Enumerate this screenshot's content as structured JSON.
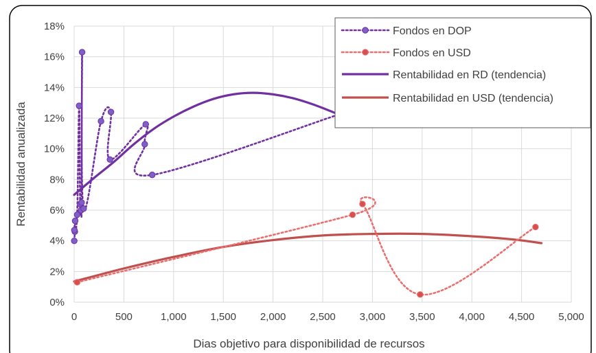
{
  "chart_data": {
    "type": "scatter",
    "title": "",
    "xlabel": "Dias objetivo para disponibilidad de recursos",
    "ylabel": "Rentabilidad anualizada",
    "xlim": [
      0,
      5000
    ],
    "ylim": [
      0,
      18
    ],
    "x_ticks": [
      0,
      500,
      1000,
      1500,
      2000,
      2500,
      3000,
      3500,
      4000,
      4500,
      5000
    ],
    "x_tick_labels": [
      "0",
      "500",
      "1,000",
      "1,500",
      "2,000",
      "2,500",
      "3,000",
      "3,500",
      "4,000",
      "4,500",
      "5,000"
    ],
    "y_ticks": [
      0,
      2,
      4,
      6,
      8,
      10,
      12,
      14,
      16,
      18
    ],
    "y_tick_labels": [
      "0%",
      "2%",
      "4%",
      "6%",
      "8%",
      "10%",
      "12%",
      "14%",
      "16%",
      "18%"
    ],
    "grid": true,
    "legend_position": "top-right",
    "series": [
      {
        "name": "Fondos en DOP",
        "style": "dotted-markers",
        "color": "#7030A0",
        "marker_color": "#7F5FC8",
        "x": [
          1,
          7,
          10,
          2,
          30,
          50,
          60,
          70,
          75,
          80,
          95,
          270,
          370,
          360,
          720,
          710,
          785,
          2690
        ],
        "y": [
          4.0,
          4.6,
          5.3,
          4.7,
          5.7,
          12.8,
          6.4,
          6.0,
          6.5,
          16.3,
          6.1,
          11.8,
          12.4,
          9.3,
          11.6,
          10.3,
          8.3,
          12.3
        ]
      },
      {
        "name": "Fondos en USD",
        "style": "dotted-markers",
        "color": "#EB6E6E",
        "marker_color": "#D6504D",
        "x": [
          30,
          2800,
          2900,
          3480,
          4640
        ],
        "y": [
          1.3,
          5.7,
          6.4,
          0.5,
          4.9
        ]
      },
      {
        "name": "Rentabilidad en RD (tendencia)",
        "style": "solid-line",
        "color": "#7030A0",
        "x": [
          0,
          200,
          400,
          600,
          800,
          1000,
          1200,
          1400,
          1600,
          1800,
          2000,
          2200,
          2400,
          2600,
          2690
        ],
        "y": [
          7.0,
          8.1,
          9.15,
          10.3,
          11.3,
          12.1,
          12.75,
          13.25,
          13.55,
          13.65,
          13.55,
          13.3,
          12.9,
          12.4,
          12.15
        ]
      },
      {
        "name": "Rentabilidad en USD (tendencia)",
        "style": "solid-line",
        "color": "#C0504D",
        "x": [
          0,
          500,
          1000,
          1500,
          2000,
          2500,
          3000,
          3500,
          4000,
          4400,
          4700
        ],
        "y": [
          1.35,
          2.2,
          2.95,
          3.6,
          4.05,
          4.35,
          4.45,
          4.45,
          4.3,
          4.1,
          3.85
        ]
      }
    ]
  }
}
